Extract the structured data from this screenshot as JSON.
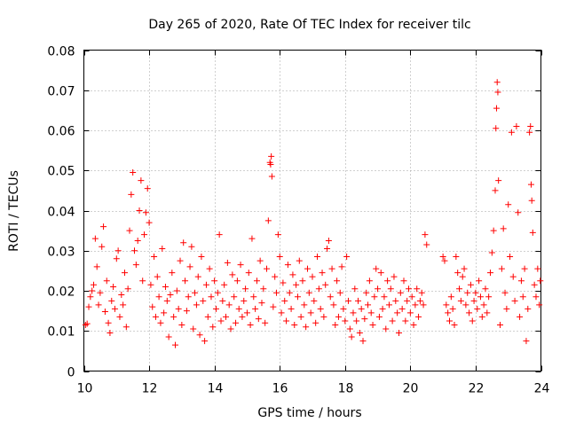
{
  "chart_data": {
    "type": "scatter",
    "title": "Day 265 of 2020, Rate Of TEC Index for receiver tilc",
    "xlabel": "GPS time / hours",
    "ylabel": "ROTI / TECUs",
    "xlim": [
      10,
      24
    ],
    "ylim": [
      0,
      0.08
    ],
    "x_ticks": [
      "10",
      "12",
      "14",
      "16",
      "18",
      "20",
      "22",
      "24"
    ],
    "y_ticks": [
      "0",
      "0.01",
      "0.02",
      "0.03",
      "0.04",
      "0.05",
      "0.06",
      "0.07",
      "0.08"
    ],
    "grid": true,
    "marker": "+",
    "marker_color": "#ff0000",
    "points": [
      [
        10.05,
        0.0115
      ],
      [
        10.1,
        0.0118
      ],
      [
        10.15,
        0.016
      ],
      [
        10.2,
        0.0185
      ],
      [
        10.25,
        0.02
      ],
      [
        10.3,
        0.0215
      ],
      [
        10.35,
        0.033
      ],
      [
        10.4,
        0.026
      ],
      [
        10.45,
        0.0165
      ],
      [
        10.5,
        0.0195
      ],
      [
        10.55,
        0.031
      ],
      [
        10.6,
        0.036
      ],
      [
        10.65,
        0.0148
      ],
      [
        10.7,
        0.0225
      ],
      [
        10.75,
        0.012
      ],
      [
        10.8,
        0.0095
      ],
      [
        10.85,
        0.0175
      ],
      [
        10.9,
        0.021
      ],
      [
        10.95,
        0.0155
      ],
      [
        11.0,
        0.028
      ],
      [
        11.05,
        0.03
      ],
      [
        11.1,
        0.0135
      ],
      [
        11.15,
        0.019
      ],
      [
        11.2,
        0.0165
      ],
      [
        11.25,
        0.0245
      ],
      [
        11.3,
        0.011
      ],
      [
        11.35,
        0.0205
      ],
      [
        11.4,
        0.035
      ],
      [
        11.45,
        0.044
      ],
      [
        11.5,
        0.0495
      ],
      [
        11.55,
        0.03
      ],
      [
        11.6,
        0.0265
      ],
      [
        11.65,
        0.0325
      ],
      [
        11.7,
        0.04
      ],
      [
        11.75,
        0.0475
      ],
      [
        11.8,
        0.0225
      ],
      [
        11.85,
        0.034
      ],
      [
        11.9,
        0.0395
      ],
      [
        11.95,
        0.0455
      ],
      [
        12.0,
        0.037
      ],
      [
        12.05,
        0.0215
      ],
      [
        12.1,
        0.016
      ],
      [
        12.15,
        0.0285
      ],
      [
        12.2,
        0.0135
      ],
      [
        12.25,
        0.0235
      ],
      [
        12.3,
        0.0185
      ],
      [
        12.35,
        0.012
      ],
      [
        12.4,
        0.0305
      ],
      [
        12.45,
        0.0145
      ],
      [
        12.5,
        0.021
      ],
      [
        12.55,
        0.0175
      ],
      [
        12.6,
        0.0085
      ],
      [
        12.65,
        0.019
      ],
      [
        12.7,
        0.0245
      ],
      [
        12.75,
        0.0135
      ],
      [
        12.8,
        0.0065
      ],
      [
        12.85,
        0.02
      ],
      [
        12.9,
        0.0155
      ],
      [
        12.95,
        0.0275
      ],
      [
        13.0,
        0.0115
      ],
      [
        13.05,
        0.032
      ],
      [
        13.1,
        0.0225
      ],
      [
        13.15,
        0.015
      ],
      [
        13.2,
        0.0185
      ],
      [
        13.25,
        0.026
      ],
      [
        13.3,
        0.031
      ],
      [
        13.35,
        0.0105
      ],
      [
        13.4,
        0.0195
      ],
      [
        13.45,
        0.0165
      ],
      [
        13.5,
        0.0235
      ],
      [
        13.55,
        0.009
      ],
      [
        13.6,
        0.0285
      ],
      [
        13.65,
        0.0175
      ],
      [
        13.7,
        0.0075
      ],
      [
        13.75,
        0.0215
      ],
      [
        13.8,
        0.0135
      ],
      [
        13.85,
        0.0255
      ],
      [
        13.9,
        0.0185
      ],
      [
        13.95,
        0.011
      ],
      [
        14.0,
        0.0225
      ],
      [
        14.05,
        0.0155
      ],
      [
        14.1,
        0.0195
      ],
      [
        14.15,
        0.034
      ],
      [
        14.2,
        0.0125
      ],
      [
        14.25,
        0.0175
      ],
      [
        14.3,
        0.0215
      ],
      [
        14.35,
        0.0135
      ],
      [
        14.4,
        0.027
      ],
      [
        14.45,
        0.0165
      ],
      [
        14.5,
        0.0105
      ],
      [
        14.55,
        0.024
      ],
      [
        14.6,
        0.0185
      ],
      [
        14.65,
        0.012
      ],
      [
        14.7,
        0.0225
      ],
      [
        14.75,
        0.0155
      ],
      [
        14.8,
        0.0265
      ],
      [
        14.85,
        0.0135
      ],
      [
        14.9,
        0.0175
      ],
      [
        14.95,
        0.0205
      ],
      [
        15.0,
        0.0145
      ],
      [
        15.05,
        0.0245
      ],
      [
        15.1,
        0.0115
      ],
      [
        15.15,
        0.033
      ],
      [
        15.2,
        0.0185
      ],
      [
        15.25,
        0.0155
      ],
      [
        15.3,
        0.0225
      ],
      [
        15.35,
        0.013
      ],
      [
        15.4,
        0.0275
      ],
      [
        15.45,
        0.017
      ],
      [
        15.5,
        0.0205
      ],
      [
        15.55,
        0.012
      ],
      [
        15.6,
        0.0255
      ],
      [
        15.65,
        0.0375
      ],
      [
        15.7,
        0.052
      ],
      [
        15.72,
        0.0515
      ],
      [
        15.74,
        0.0535
      ],
      [
        15.76,
        0.0485
      ],
      [
        15.8,
        0.016
      ],
      [
        15.85,
        0.0235
      ],
      [
        15.9,
        0.0195
      ],
      [
        15.95,
        0.034
      ],
      [
        16.0,
        0.0285
      ],
      [
        16.05,
        0.0145
      ],
      [
        16.1,
        0.022
      ],
      [
        16.15,
        0.0175
      ],
      [
        16.2,
        0.0125
      ],
      [
        16.25,
        0.0265
      ],
      [
        16.3,
        0.0195
      ],
      [
        16.35,
        0.0155
      ],
      [
        16.4,
        0.024
      ],
      [
        16.45,
        0.0115
      ],
      [
        16.5,
        0.0215
      ],
      [
        16.55,
        0.0185
      ],
      [
        16.6,
        0.0275
      ],
      [
        16.65,
        0.0135
      ],
      [
        16.7,
        0.0225
      ],
      [
        16.75,
        0.0165
      ],
      [
        16.8,
        0.011
      ],
      [
        16.85,
        0.0255
      ],
      [
        16.9,
        0.0195
      ],
      [
        16.95,
        0.0145
      ],
      [
        17.0,
        0.0235
      ],
      [
        17.05,
        0.0175
      ],
      [
        17.1,
        0.012
      ],
      [
        17.15,
        0.0285
      ],
      [
        17.2,
        0.0205
      ],
      [
        17.25,
        0.0155
      ],
      [
        17.3,
        0.0245
      ],
      [
        17.35,
        0.0135
      ],
      [
        17.4,
        0.0215
      ],
      [
        17.45,
        0.0305
      ],
      [
        17.5,
        0.0325
      ],
      [
        17.55,
        0.0185
      ],
      [
        17.6,
        0.0255
      ],
      [
        17.65,
        0.0165
      ],
      [
        17.7,
        0.0115
      ],
      [
        17.75,
        0.0225
      ],
      [
        17.8,
        0.0135
      ],
      [
        17.85,
        0.0195
      ],
      [
        17.9,
        0.026
      ],
      [
        17.95,
        0.0155
      ],
      [
        18.0,
        0.0125
      ],
      [
        18.05,
        0.0285
      ],
      [
        18.1,
        0.0175
      ],
      [
        18.15,
        0.0105
      ],
      [
        18.2,
        0.0085
      ],
      [
        18.25,
        0.0145
      ],
      [
        18.3,
        0.0205
      ],
      [
        18.35,
        0.0125
      ],
      [
        18.4,
        0.0175
      ],
      [
        18.45,
        0.0095
      ],
      [
        18.5,
        0.0155
      ],
      [
        18.55,
        0.0075
      ],
      [
        18.6,
        0.013
      ],
      [
        18.65,
        0.0195
      ],
      [
        18.7,
        0.0165
      ],
      [
        18.75,
        0.0225
      ],
      [
        18.8,
        0.0145
      ],
      [
        18.85,
        0.0115
      ],
      [
        18.9,
        0.0185
      ],
      [
        18.95,
        0.0255
      ],
      [
        19.0,
        0.0205
      ],
      [
        19.05,
        0.0135
      ],
      [
        19.1,
        0.0245
      ],
      [
        19.15,
        0.0155
      ],
      [
        19.2,
        0.0185
      ],
      [
        19.25,
        0.0105
      ],
      [
        19.3,
        0.0225
      ],
      [
        19.35,
        0.0165
      ],
      [
        19.4,
        0.0205
      ],
      [
        19.45,
        0.0125
      ],
      [
        19.5,
        0.0235
      ],
      [
        19.55,
        0.0175
      ],
      [
        19.6,
        0.0145
      ],
      [
        19.65,
        0.0095
      ],
      [
        19.7,
        0.0195
      ],
      [
        19.75,
        0.0155
      ],
      [
        19.8,
        0.0225
      ],
      [
        19.85,
        0.0125
      ],
      [
        19.9,
        0.0175
      ],
      [
        19.95,
        0.0205
      ],
      [
        20.0,
        0.0145
      ],
      [
        20.05,
        0.0185
      ],
      [
        20.1,
        0.0115
      ],
      [
        20.15,
        0.0165
      ],
      [
        20.2,
        0.0205
      ],
      [
        20.25,
        0.0135
      ],
      [
        20.3,
        0.0175
      ],
      [
        20.35,
        0.0195
      ],
      [
        20.4,
        0.0165
      ],
      [
        20.45,
        0.034
      ],
      [
        20.5,
        0.0315
      ],
      [
        21.0,
        0.0285
      ],
      [
        21.05,
        0.0275
      ],
      [
        21.1,
        0.0165
      ],
      [
        21.15,
        0.0145
      ],
      [
        21.2,
        0.0125
      ],
      [
        21.25,
        0.0185
      ],
      [
        21.3,
        0.0155
      ],
      [
        21.35,
        0.0115
      ],
      [
        21.4,
        0.0285
      ],
      [
        21.45,
        0.0245
      ],
      [
        21.5,
        0.0205
      ],
      [
        21.55,
        0.0175
      ],
      [
        21.6,
        0.0235
      ],
      [
        21.65,
        0.0255
      ],
      [
        21.7,
        0.0165
      ],
      [
        21.75,
        0.0195
      ],
      [
        21.8,
        0.0145
      ],
      [
        21.85,
        0.0215
      ],
      [
        21.9,
        0.0125
      ],
      [
        21.95,
        0.0175
      ],
      [
        22.0,
        0.0195
      ],
      [
        22.05,
        0.0155
      ],
      [
        22.1,
        0.0225
      ],
      [
        22.15,
        0.0185
      ],
      [
        22.2,
        0.0135
      ],
      [
        22.25,
        0.0165
      ],
      [
        22.3,
        0.0205
      ],
      [
        22.35,
        0.0145
      ],
      [
        22.4,
        0.0185
      ],
      [
        22.45,
        0.0245
      ],
      [
        22.5,
        0.0295
      ],
      [
        22.55,
        0.035
      ],
      [
        22.6,
        0.045
      ],
      [
        22.62,
        0.0605
      ],
      [
        22.64,
        0.0655
      ],
      [
        22.66,
        0.072
      ],
      [
        22.68,
        0.0695
      ],
      [
        22.7,
        0.0475
      ],
      [
        22.75,
        0.0115
      ],
      [
        22.8,
        0.0255
      ],
      [
        22.85,
        0.0355
      ],
      [
        22.9,
        0.0195
      ],
      [
        22.95,
        0.0155
      ],
      [
        23.0,
        0.0415
      ],
      [
        23.05,
        0.0285
      ],
      [
        23.1,
        0.0595
      ],
      [
        23.15,
        0.0235
      ],
      [
        23.2,
        0.0175
      ],
      [
        23.25,
        0.061
      ],
      [
        23.3,
        0.0395
      ],
      [
        23.35,
        0.0135
      ],
      [
        23.4,
        0.0225
      ],
      [
        23.45,
        0.0185
      ],
      [
        23.5,
        0.0255
      ],
      [
        23.55,
        0.0075
      ],
      [
        23.6,
        0.0155
      ],
      [
        23.65,
        0.0595
      ],
      [
        23.68,
        0.061
      ],
      [
        23.7,
        0.0465
      ],
      [
        23.72,
        0.0425
      ],
      [
        23.75,
        0.0345
      ],
      [
        23.8,
        0.0215
      ],
      [
        23.85,
        0.0185
      ],
      [
        23.9,
        0.0255
      ],
      [
        23.95,
        0.0165
      ],
      [
        23.98,
        0.0225
      ]
    ]
  }
}
